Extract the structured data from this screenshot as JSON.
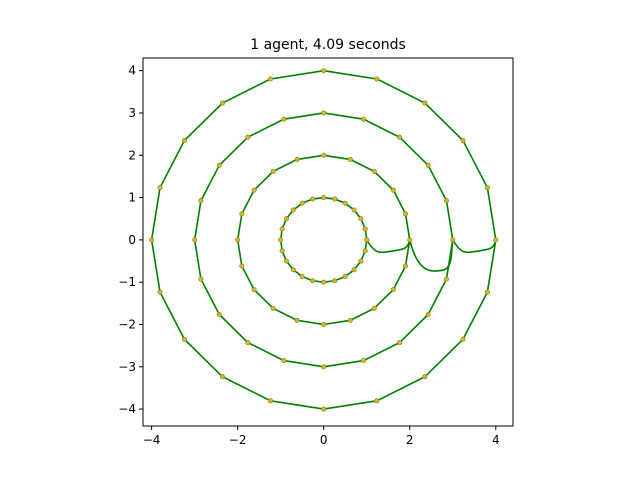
{
  "chart_data": {
    "type": "line",
    "title": "1 agent, 4.09 seconds",
    "xlabel": "",
    "ylabel": "",
    "xlim": [
      -4.2,
      4.4
    ],
    "ylim": [
      -4.4,
      4.3
    ],
    "xticks": [
      -4,
      -2,
      0,
      2,
      4
    ],
    "yticks": [
      -4,
      -3,
      -2,
      -1,
      0,
      1,
      2,
      3,
      4
    ],
    "xtick_labels": [
      "−4",
      "−2",
      "0",
      "2",
      "4"
    ],
    "ytick_labels": [
      "−4",
      "−3",
      "−2",
      "−1",
      "0",
      "1",
      "2",
      "3",
      "4"
    ],
    "grid": false,
    "legend": "none",
    "colors": {
      "path": "#008000",
      "waypoint_face": "#d4b53a",
      "waypoint_edge": "#808000"
    },
    "rings": [
      {
        "radius": 1,
        "waypoints": 24
      },
      {
        "radius": 2,
        "waypoints": 20
      },
      {
        "radius": 3,
        "waypoints": 20
      },
      {
        "radius": 4,
        "waypoints": 20
      }
    ],
    "transitions": [
      {
        "from_radius": 1,
        "to_radius": 2,
        "low_point": [
          1.55,
          -0.27
        ]
      },
      {
        "from_radius": 2,
        "to_radius": 3,
        "low_point": [
          2.75,
          -0.72
        ]
      },
      {
        "from_radius": 3,
        "to_radius": 4,
        "low_point": [
          3.55,
          -0.27
        ]
      }
    ]
  }
}
